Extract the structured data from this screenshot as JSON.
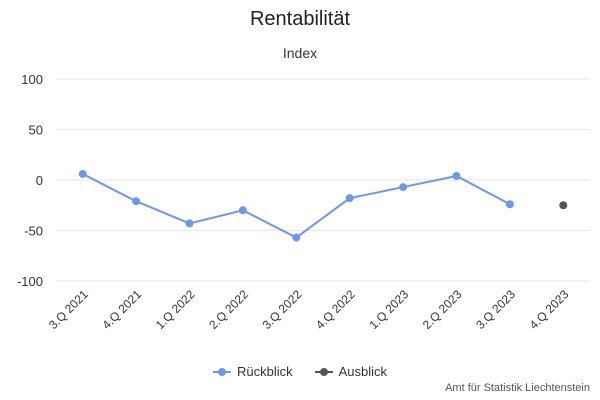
{
  "chart_data": {
    "type": "line",
    "title": "Rentabilität",
    "subtitle": "Index",
    "categories": [
      "3.Q 2021",
      "4.Q 2021",
      "1.Q 2022",
      "2.Q 2022",
      "3.Q 2022",
      "4.Q 2022",
      "1.Q 2023",
      "2.Q 2023",
      "3.Q 2023",
      "4.Q 2023"
    ],
    "ylim": [
      -100,
      100
    ],
    "yticks": [
      -100,
      -50,
      0,
      50,
      100
    ],
    "grid": true,
    "legend_position": "bottom-center",
    "series": [
      {
        "name": "Rückblick",
        "color": "#6d97ea",
        "values": [
          6,
          -21,
          -43,
          -30,
          -57,
          -18,
          -7,
          4,
          -24,
          null
        ]
      },
      {
        "name": "Ausblick",
        "color": "#555555",
        "values": [
          null,
          null,
          null,
          null,
          null,
          null,
          null,
          null,
          null,
          -25
        ]
      }
    ]
  },
  "credits": "Amt für Statistik Liechtenstein"
}
